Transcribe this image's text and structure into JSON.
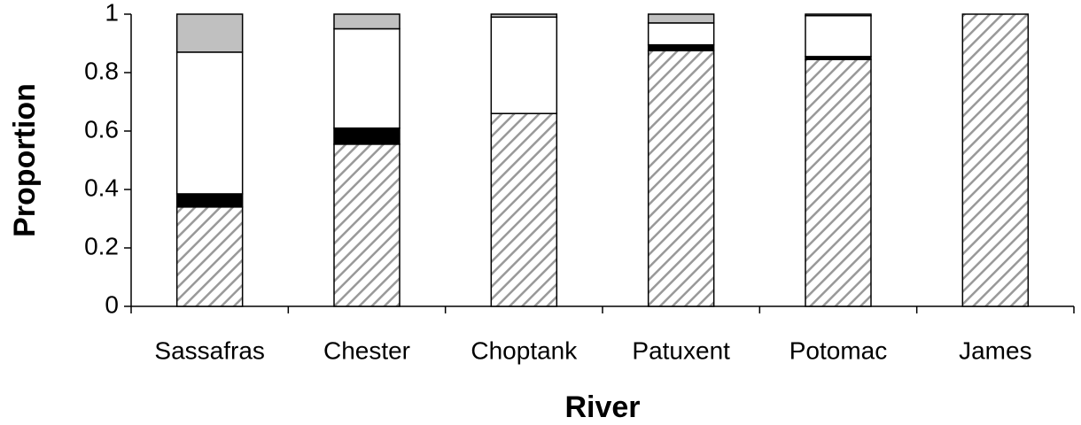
{
  "chart_data": {
    "type": "stacked_bar",
    "x_label": "River",
    "y_label": "Proportion",
    "categories": [
      "Sassafras",
      "Chester",
      "Choptank",
      "Patuxent",
      "Potomac",
      "James"
    ],
    "series": [
      {
        "color": "#999999",
        "pattern": "hatch",
        "values": [
          0.34,
          0.555,
          0.66,
          0.875,
          0.845,
          1
        ]
      },
      {
        "color": "#000000",
        "values": [
          0.045,
          0.055,
          0,
          0.02,
          0.01,
          0
        ]
      },
      {
        "color": "#ffffff",
        "values": [
          0.485,
          0.34,
          0.33,
          0.075,
          0.14,
          0
        ]
      },
      {
        "color": "#c0c0c0",
        "values": [
          0.13,
          0.05,
          0.01,
          0.03,
          0.005,
          0
        ]
      }
    ],
    "ylim": [
      0,
      1
    ],
    "yticks": [
      0,
      0.2,
      0.4,
      0.6,
      0.8,
      1
    ]
  }
}
